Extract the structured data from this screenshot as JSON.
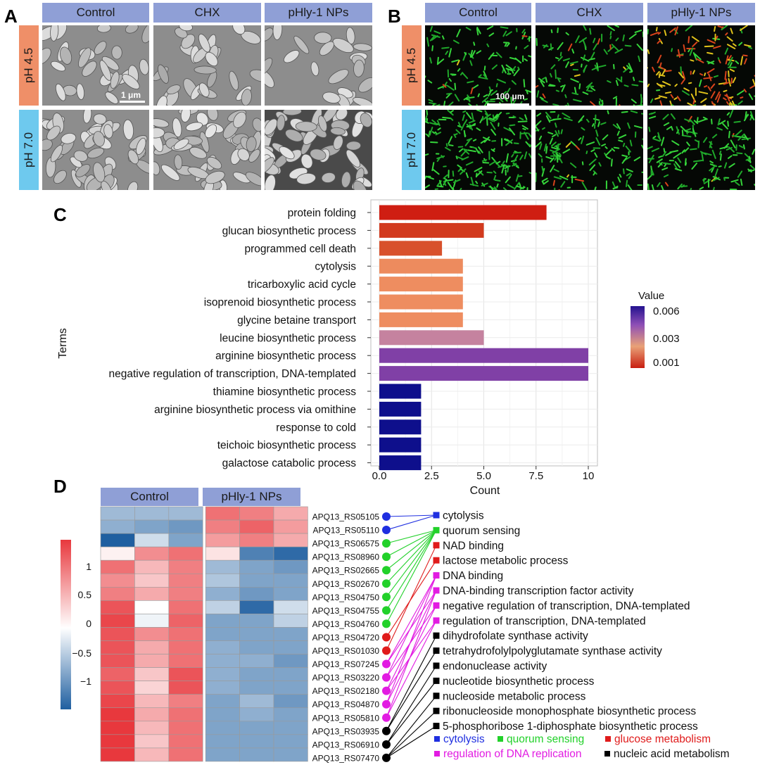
{
  "panel_a": {
    "letter": "A",
    "columns": [
      "Control",
      "CHX",
      "pHly-1 NPs"
    ],
    "rows": [
      "pH 4.5",
      "pH 7.0"
    ],
    "scale_bar": "1 μm"
  },
  "panel_b": {
    "letter": "B",
    "columns": [
      "Control",
      "CHX",
      "pHly-1 NPs"
    ],
    "rows": [
      "pH 4.5",
      "pH 7.0"
    ],
    "scale_bar": "100 μm"
  },
  "panel_c": {
    "letter": "C",
    "chart_data": {
      "type": "bar",
      "orientation": "horizontal",
      "xlabel": "Count",
      "ylabel": "Terms",
      "xlim": [
        0,
        10
      ],
      "xticks": [
        "0.0",
        "2.5",
        "5.0",
        "7.5",
        "10"
      ],
      "grid": true,
      "legend": {
        "title": "Value",
        "placement": "right",
        "ticks": [
          "0.006",
          "0.003",
          "0.001"
        ],
        "colors": [
          "#23128f",
          "#8e4fb6",
          "#e9a177",
          "#c81e10"
        ]
      },
      "categories": [
        "protein folding",
        "glucan biosynthetic process",
        "programmed cell death",
        "cytolysis",
        "tricarboxylic acid cycle",
        "isoprenoid biosynthetic process",
        "glycine betaine transport",
        "leucine biosynthetic process",
        "arginine biosynthetic process",
        "negative regulation of transcription, DNA-templated",
        "thiamine biosynthetic process",
        "arginine biosynthetic process via omithine",
        "response to cold",
        "teichoic  biosynthetic process",
        "galactose catabolic process"
      ],
      "values": [
        8,
        5,
        3,
        4,
        4,
        4,
        4,
        5,
        10,
        10,
        2,
        2,
        2,
        2,
        2
      ],
      "colors": [
        "#cf1e12",
        "#d23a1e",
        "#d8512c",
        "#ed8b5e",
        "#ee8d60",
        "#ee8d60",
        "#ee8d60",
        "#c5829f",
        "#8040a6",
        "#8040a6",
        "#0e0f8c",
        "#0e0f8c",
        "#0e0f8c",
        "#0e0f8c",
        "#0e0f8c"
      ]
    }
  },
  "panel_d": {
    "letter": "D",
    "groups": [
      "Control",
      "pHly-1 NPs"
    ],
    "colorbar_ticks": [
      "1",
      "0.5",
      "0",
      "−0.5",
      "−1"
    ],
    "colorbar_colors": {
      "high": "#e8383d",
      "mid": "#ffffff",
      "low": "#1f5fa0"
    },
    "genes": [
      "APQ13_RS05105",
      "APQ13_RS05110",
      "APQ13_RS06575",
      "APQ13_RS08960",
      "APQ13_RS02665",
      "APQ13_RS02670",
      "APQ13_RS04750",
      "APQ13_RS04755",
      "APQ13_RS04760",
      "APQ13_RS04720",
      "APQ13_RS01030",
      "APQ13_RS07245",
      "APQ13_RS03220",
      "APQ13_RS02180",
      "APQ13_RS04870",
      "APQ13_RS05810",
      "APQ13_RS03935",
      "APQ13_RS06910",
      "APQ13_RS07470"
    ],
    "gene_categories": [
      "cytolysis",
      "cytolysis",
      "quorum",
      "quorum",
      "quorum",
      "quorum",
      "quorum",
      "quorum",
      "quorum",
      "glucose",
      "glucose",
      "dna",
      "dna",
      "dna",
      "dna",
      "dna",
      "nucleic",
      "nucleic",
      "nucleic"
    ],
    "heatmap_values": [
      [
        -0.6,
        -0.6,
        -0.6,
        1.0,
        0.9,
        0.6
      ],
      [
        -0.7,
        -0.8,
        -0.9,
        0.9,
        1.1,
        0.7
      ],
      [
        -1.4,
        -0.3,
        -0.8,
        0.7,
        0.9,
        0.6
      ],
      [
        0.1,
        0.8,
        1.0,
        0.2,
        -1.1,
        -1.3
      ],
      [
        1.0,
        0.5,
        0.9,
        -0.6,
        -0.8,
        -0.9
      ],
      [
        0.8,
        0.4,
        0.9,
        -0.5,
        -0.8,
        -0.8
      ],
      [
        0.9,
        0.6,
        0.9,
        -0.7,
        -0.9,
        -0.8
      ],
      [
        1.2,
        0.0,
        1.0,
        -0.4,
        -1.3,
        -0.3
      ],
      [
        1.3,
        -0.1,
        1.1,
        -0.8,
        -0.8,
        -0.4
      ],
      [
        1.2,
        0.8,
        1.0,
        -0.8,
        -0.8,
        -0.8
      ],
      [
        1.2,
        0.6,
        1.0,
        -0.7,
        -0.8,
        -0.8
      ],
      [
        1.2,
        0.6,
        1.0,
        -0.7,
        -0.7,
        -0.9
      ],
      [
        1.1,
        0.4,
        1.2,
        -0.7,
        -0.8,
        -0.8
      ],
      [
        1.2,
        0.3,
        1.2,
        -0.7,
        -0.8,
        -0.8
      ],
      [
        1.3,
        0.5,
        0.9,
        -0.8,
        -0.6,
        -0.9
      ],
      [
        1.4,
        0.6,
        1.0,
        -0.8,
        -0.7,
        -0.8
      ],
      [
        1.4,
        0.5,
        1.0,
        -0.8,
        -0.8,
        -0.8
      ],
      [
        1.4,
        0.4,
        1.0,
        -0.8,
        -0.8,
        -0.8
      ],
      [
        1.4,
        0.5,
        1.0,
        -0.8,
        -0.8,
        -0.8
      ]
    ],
    "terms": [
      "cytolysis",
      "quorum sensing",
      "NAD binding",
      "lactose metabolic process",
      "DNA binding",
      "DNA-binding transcription factor activity",
      "negative regulation of transcription, DNA-templated",
      "regulation of transcription, DNA-templated",
      "dihydrofolate synthase activity",
      "tetrahydrofolylpolyglutamate synthase activity",
      "endonuclease activity",
      "nucleotide biosynthetic process",
      "nucleoside metabolic process",
      "ribonucleoside monophosphate biosynthetic process",
      "5-phosphoribose 1-diphosphate biosynthetic process"
    ],
    "term_categories": [
      "cytolysis",
      "quorum",
      "glucose",
      "glucose",
      "dna",
      "dna",
      "dna",
      "dna",
      "nucleic",
      "nucleic",
      "nucleic",
      "nucleic",
      "nucleic",
      "nucleic",
      "nucleic"
    ],
    "links": [
      [
        0,
        0
      ],
      [
        1,
        0
      ],
      [
        2,
        1
      ],
      [
        3,
        1
      ],
      [
        4,
        1
      ],
      [
        5,
        1
      ],
      [
        6,
        1
      ],
      [
        7,
        1
      ],
      [
        8,
        1
      ],
      [
        9,
        3
      ],
      [
        10,
        2
      ],
      [
        11,
        4
      ],
      [
        11,
        5
      ],
      [
        12,
        4
      ],
      [
        12,
        6
      ],
      [
        13,
        5
      ],
      [
        13,
        7
      ],
      [
        14,
        4
      ],
      [
        14,
        6
      ],
      [
        15,
        5
      ],
      [
        15,
        7
      ],
      [
        16,
        8
      ],
      [
        16,
        9
      ],
      [
        17,
        10
      ],
      [
        17,
        11
      ],
      [
        18,
        12
      ],
      [
        18,
        13
      ],
      [
        18,
        14
      ]
    ],
    "category_colors": {
      "cytolysis": "#1f2fe0",
      "quorum": "#22d12a",
      "glucose": "#e01b1b",
      "dna": "#e21be2",
      "nucleic": "#000000"
    },
    "legend": [
      {
        "key": "cytolysis",
        "label": "cytolysis"
      },
      {
        "key": "quorum",
        "label": "quorum sensing"
      },
      {
        "key": "glucose",
        "label": "glucose metabolism"
      },
      {
        "key": "dna",
        "label": "regulation of DNA replication"
      },
      {
        "key": "nucleic",
        "label": "nucleic acid metabolism"
      }
    ]
  }
}
